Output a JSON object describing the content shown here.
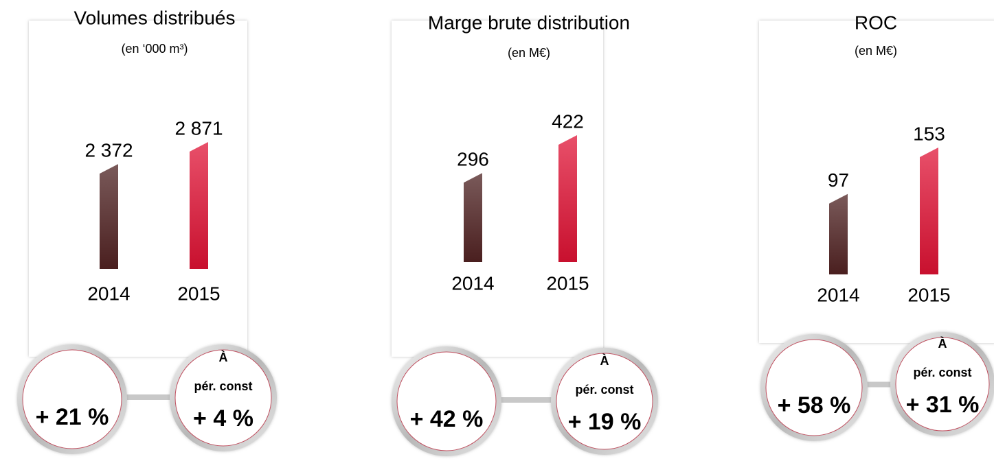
{
  "chart_data": [
    {
      "type": "bar",
      "title": "Volumes distribués",
      "subtitle": "(en ‘000 m³)",
      "categories": [
        "2014",
        "2015"
      ],
      "values": [
        2372,
        2871
      ],
      "value_labels": [
        "2 372",
        "2 871"
      ],
      "colors": [
        "#4a1f1f",
        "#c8102e"
      ],
      "annotations": {
        "growth": "+ 21 %",
        "note": [
          "À",
          "pér. const"
        ],
        "growth_const": "+ 4 %"
      }
    },
    {
      "type": "bar",
      "title": "Marge brute distribution",
      "subtitle": "(en M€)",
      "categories": [
        "2014",
        "2015"
      ],
      "values": [
        296,
        422
      ],
      "colors": [
        "#4a1f1f",
        "#c8102e"
      ],
      "annotations": {
        "growth": "+ 42 %",
        "note": [
          "À",
          "pér. const"
        ],
        "growth_const": "+ 19 %"
      }
    },
    {
      "type": "bar",
      "title": "ROC",
      "subtitle": "(en M€)",
      "categories": [
        "2014",
        "2015"
      ],
      "values": [
        97,
        153
      ],
      "colors": [
        "#4a1f1f",
        "#c8102e"
      ],
      "annotations": {
        "growth": "+ 58 %",
        "note": [
          "À",
          "pér. const"
        ],
        "growth_const": "+ 31 %"
      }
    }
  ]
}
